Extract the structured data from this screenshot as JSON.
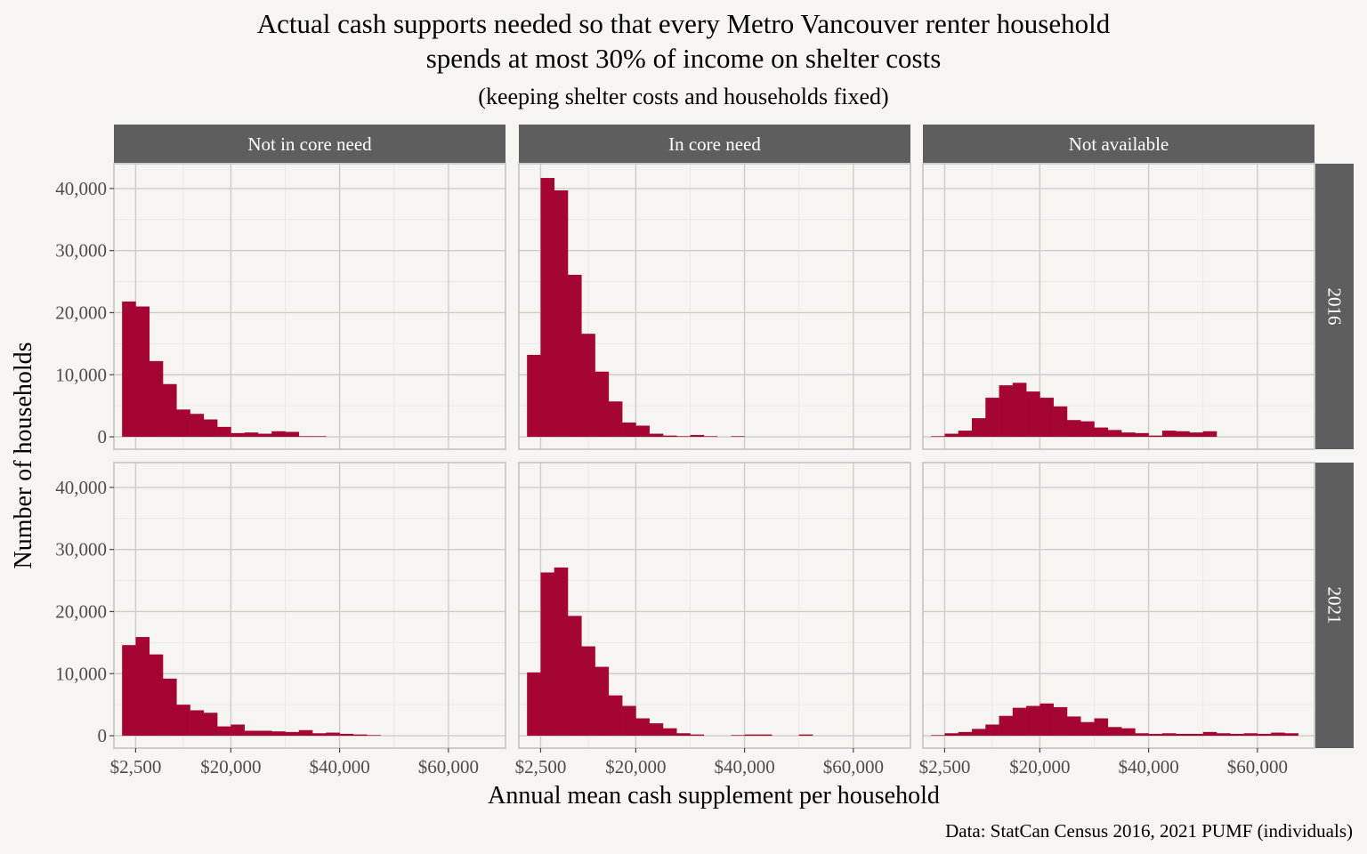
{
  "chart_data": {
    "type": "bar",
    "title": "Actual cash supports needed so that every Metro Vancouver renter household",
    "title_line2": "spends at most 30% of income on shelter costs",
    "subtitle": "(keeping shelter costs and households fixed)",
    "xlabel": "Annual mean cash supplement per household",
    "ylabel": "Number of households",
    "caption": "Data: StatCan Census 2016, 2021 PUMF (individuals)",
    "columns": [
      "Not in core need",
      "In core need",
      "Not available"
    ],
    "rows": [
      "2016",
      "2021"
    ],
    "x_ticks": [
      {
        "value": 2500,
        "label": "$2,500"
      },
      {
        "value": 20000,
        "label": "$20,000"
      },
      {
        "value": 40000,
        "label": "$40,000"
      },
      {
        "value": 60000,
        "label": "$60,000"
      }
    ],
    "y_ticks": [
      {
        "value": 0,
        "label": "0"
      },
      {
        "value": 10000,
        "label": "10,000"
      },
      {
        "value": 20000,
        "label": "20,000"
      },
      {
        "value": 30000,
        "label": "30,000"
      },
      {
        "value": 40000,
        "label": "40,000"
      }
    ],
    "xlim": [
      -1500,
      70500
    ],
    "ylim": [
      -2000,
      44000
    ],
    "bin_start": 0,
    "bin_width": 2500,
    "bar_color": "#a50533",
    "grid": true,
    "panels": [
      {
        "row": "2016",
        "column": "Not in core need",
        "counts": [
          21800,
          21000,
          12200,
          8500,
          4400,
          3700,
          2800,
          1600,
          600,
          700,
          500,
          900,
          800,
          100,
          100
        ]
      },
      {
        "row": "2016",
        "column": "In core need",
        "counts": [
          13200,
          41700,
          39700,
          26100,
          16600,
          10500,
          5700,
          2300,
          1800,
          500,
          200,
          100,
          300,
          100,
          0,
          100
        ]
      },
      {
        "row": "2016",
        "column": "Not available",
        "counts": [
          100,
          500,
          1000,
          3000,
          6300,
          8300,
          8700,
          7300,
          6300,
          4900,
          2700,
          2500,
          1500,
          1100,
          700,
          600,
          200,
          1000,
          900,
          700,
          900
        ]
      },
      {
        "row": "2021",
        "column": "Not in core need",
        "counts": [
          14600,
          15900,
          13100,
          9200,
          5000,
          4100,
          3700,
          1500,
          1800,
          800,
          800,
          700,
          600,
          900,
          400,
          500,
          300,
          200,
          100
        ]
      },
      {
        "row": "2021",
        "column": "In core need",
        "counts": [
          10200,
          26300,
          27100,
          19300,
          14400,
          11100,
          6500,
          4800,
          2800,
          2000,
          1200,
          400,
          200,
          0,
          0,
          100,
          200,
          200,
          0,
          0,
          200
        ]
      },
      {
        "row": "2021",
        "column": "Not available",
        "counts": [
          100,
          400,
          600,
          1100,
          1800,
          3200,
          4500,
          4800,
          5200,
          4600,
          3100,
          2200,
          2800,
          1400,
          1200,
          400,
          300,
          400,
          300,
          300,
          600,
          400,
          300,
          400,
          300,
          500,
          400
        ]
      }
    ]
  }
}
